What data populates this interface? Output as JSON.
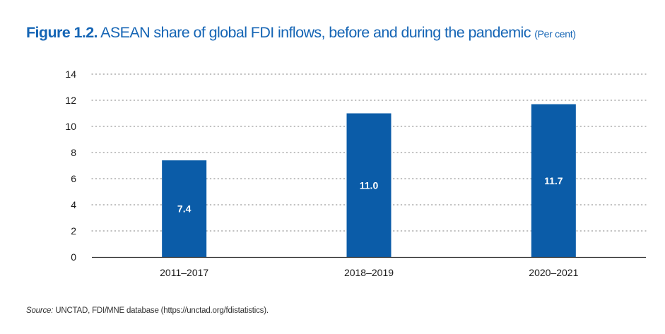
{
  "figure": {
    "label": "Figure 1.2.",
    "title": "ASEAN share of global FDI inflows, before and during the pandemic",
    "units": "(Per cent)"
  },
  "source": {
    "label": "Source:",
    "text": "UNCTAD, FDI/MNE database (https://unctad.org/fdistatistics)."
  },
  "colors": {
    "title": "#1565b5",
    "bar": "#0b5ca8",
    "grid": "#9a9a9a",
    "axis_text": "#1a1a1a"
  },
  "chart_data": {
    "type": "bar",
    "categories": [
      "2011–2017",
      "2018–2019",
      "2020–2021"
    ],
    "values": [
      7.4,
      11.0,
      11.7
    ],
    "value_labels": [
      "7.4",
      "11.0",
      "11.7"
    ],
    "ylim": [
      0,
      14
    ],
    "yticks": [
      0,
      2,
      4,
      6,
      8,
      10,
      12,
      14
    ],
    "grid": true,
    "grid_style": "dotted",
    "legend": "none"
  }
}
